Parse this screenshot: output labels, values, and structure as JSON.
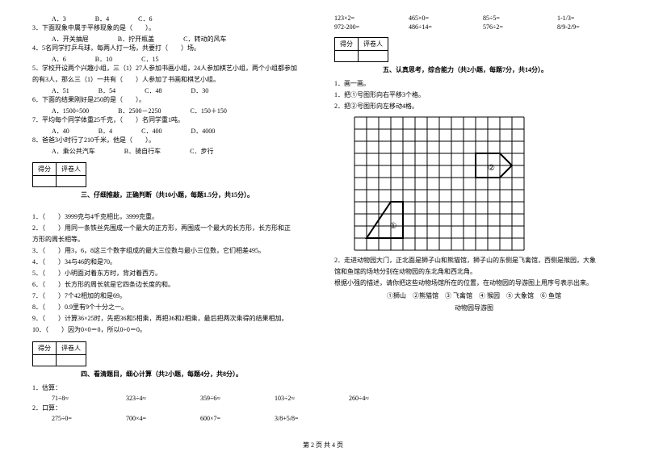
{
  "colors": {
    "text": "#000000",
    "bg": "#ffffff",
    "grid": "#000000"
  },
  "left": {
    "q2_opts": {
      "a": "A．3",
      "b": "B．4",
      "c": "C．6"
    },
    "q3": "3．下面现象中属于平移现象的是（　　）。",
    "q3_opts": {
      "a": "A．开关抽屉",
      "b": "B．拧开瓶盖",
      "c": "C．转动的风车"
    },
    "q4": "4．5名同学打乒乓球，每两人打一场，共要打（　　）场。",
    "q4_opts": {
      "a": "A．6",
      "b": "B．10",
      "c": "C．15"
    },
    "q5a": "5．学校开设两个兴趣小组，三（1）27人参加书画小组，24人参加棋艺小组，两个小组都参加",
    "q5b": "的有3人，那么三（1）一共有（　　）人参加了书画和棋艺小组。",
    "q5_opts": {
      "a": "A．51",
      "b": "B．54",
      "c": "C．48",
      "d": "D．30"
    },
    "q6": "6．下面的结果刚好是250的是（　　）。",
    "q6_opts": {
      "a": "A．1500÷500",
      "b": "B．2500－2250",
      "c": "C．150＋150"
    },
    "q7": "7．平均每个同学体重25千克，（　　）名同学重1吨。",
    "q7_opts": {
      "a": "A．40",
      "b": "B．4",
      "c": "C．400",
      "d": "D．4000"
    },
    "q8": "8．爸爸3小时行了210千米，他是（　　）。",
    "q8_opts": {
      "a": "A．乘公共汽车",
      "b": "B．骑自行车",
      "c": "C．步行"
    },
    "score_hdr": {
      "a": "得分",
      "b": "评卷人"
    },
    "sec3": "三、仔细推敲，正确判断（共10小题，每题1.5分，共15分）。",
    "j1": "1．（　　）3999克与4千克相比，3999克重。",
    "j2a": "2．（　　）用同一条铁丝先围成一个最大的正方形，再围成一个最大的长方形，长方形和正",
    "j2b": "方形的周长相等。",
    "j3": "3．（　　）用3，6，8这三个数字组成的最大三位数与最小三位数，它们相差495。",
    "j4": "4．（　　）34与46的和是70。",
    "j5": "5．（　　）小明面对着东方时，背对着西方。",
    "j6": "6．（　　）长方形的周长就是它四条边长度的和。",
    "j7": "7．（　　）7个42相加的和是69。",
    "j8": "8．（　　）0.9里有9个十分之一。",
    "j9": "9．（　　）计算36×25时，先把36和5相乘，再把36和2相乘，最后把两次乘得的结果相加。",
    "j10": "10．（　　）因为0×0＝0，所以0÷0＝0。",
    "sec4": "四、看清题目，细心计算（共2小题，每题4分，共8分）。",
    "c1": "1．估算：",
    "c1_items": [
      "71÷8≈",
      "323÷4≈",
      "359÷6≈",
      "103÷2≈",
      "260÷4≈"
    ],
    "c2": "2．口算：",
    "c2_row1": [
      "275÷0=",
      "700×4=",
      "600×7=",
      "3/8+5/8="
    ]
  },
  "right": {
    "c2_row2": [
      "123×2=",
      "465×0=",
      "85÷5=",
      "1-1/3="
    ],
    "c2_row3": [
      "972-200=",
      "486÷14=",
      "576÷2=",
      "8/9-2/9="
    ],
    "score_hdr": {
      "a": "得分",
      "b": "评卷人"
    },
    "sec5": "五、认真思考，综合能力（共2小题，每题7分，共14分）。",
    "d1": "1．画一画。",
    "d1a": "1．把①号图形向右平移3个格。",
    "d1b": "2．把②号图形向左移动4格。",
    "grid": {
      "cols": 14,
      "rows": 11,
      "cell": 15,
      "shape1_label": "①",
      "shape2_label": "②",
      "grid_color": "#000000",
      "line_width": 1
    },
    "d2a": "2．走进动物园大门，正北面是狮子山和熊猫馆，狮子山的东侧是飞禽馆，西侧是猴园，大象",
    "d2b": "馆和鱼馆的场地分别在动物园的东北角和西北角。",
    "d2c": "根据小强的描述，请你把这些动物场馆所在的位置，在动物园的导游图上用序号表示出来。",
    "legend_items": "①狮山　②熊猫馆　③ 飞禽馆　④ 猴园　⑤ 大象馆　⑥ 鱼馆",
    "legend_title": "动物园导游图"
  },
  "footer": "第 2 页 共 4 页"
}
